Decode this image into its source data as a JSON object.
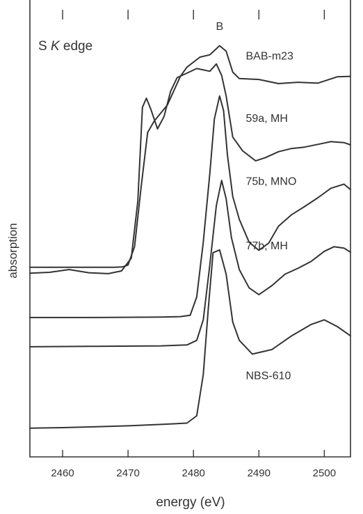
{
  "chart_data": {
    "type": "line",
    "title": "S K edge",
    "title_parts": [
      "S ",
      "K",
      " edge"
    ],
    "peak_label": "B",
    "peak_label_x": 2484,
    "xlabel": "energy (eV)",
    "ylabel": "absorption",
    "xlim": [
      2455,
      2504
    ],
    "xticks": [
      2460,
      2470,
      2480,
      2490,
      2500
    ],
    "y_ticks_shown": false,
    "grid": false,
    "legend": "none (series labelled inline at right)",
    "line_color": "#333333",
    "series": [
      {
        "name": "BAB-m23",
        "label_at": [
          2488,
          0.87
        ],
        "x": [
          2455,
          2468,
          2469.2,
          2470,
          2471,
          2472,
          2473,
          2474,
          2476,
          2478,
          2479,
          2481,
          2482.5,
          2484,
          2485,
          2486,
          2487,
          2490,
          2493,
          2496,
          2499,
          2502,
          2504
        ],
        "y": [
          0.415,
          0.415,
          0.416,
          0.42,
          0.46,
          0.59,
          0.71,
          0.735,
          0.77,
          0.833,
          0.853,
          0.875,
          0.88,
          0.9,
          0.888,
          0.842,
          0.828,
          0.826,
          0.817,
          0.82,
          0.818,
          0.832,
          0.833
        ]
      },
      {
        "name": "59a, MH",
        "label_at": [
          2488,
          0.733
        ],
        "x": [
          2455,
          2458,
          2461,
          2464,
          2467,
          2469,
          2470.5,
          2471.5,
          2472.2,
          2472.8,
          2473.5,
          2474.5,
          2475.5,
          2476.5,
          2477.5,
          2479,
          2480.5,
          2482.5,
          2483.5,
          2484.3,
          2485,
          2486,
          2487.5,
          2489.5,
          2491,
          2493,
          2495,
          2497,
          2499,
          2501,
          2503,
          2504
        ],
        "y": [
          0.402,
          0.404,
          0.41,
          0.403,
          0.401,
          0.407,
          0.435,
          0.56,
          0.765,
          0.785,
          0.76,
          0.718,
          0.745,
          0.8,
          0.83,
          0.84,
          0.85,
          0.844,
          0.86,
          0.835,
          0.79,
          0.7,
          0.67,
          0.648,
          0.655,
          0.668,
          0.675,
          0.678,
          0.684,
          0.69,
          0.688,
          0.683
        ]
      },
      {
        "name": "75b, MNO",
        "label_at": [
          2488,
          0.595
        ],
        "x": [
          2455,
          2465,
          2475,
          2478,
          2479.5,
          2480.5,
          2481.5,
          2482.5,
          2483.2,
          2484,
          2484.6,
          2485.2,
          2486,
          2487,
          2488.5,
          2490,
          2491.5,
          2493,
          2495,
          2497,
          2499,
          2501,
          2503,
          2504
        ],
        "y": [
          0.305,
          0.305,
          0.306,
          0.307,
          0.31,
          0.35,
          0.47,
          0.62,
          0.74,
          0.79,
          0.758,
          0.66,
          0.57,
          0.52,
          0.47,
          0.452,
          0.468,
          0.505,
          0.53,
          0.548,
          0.567,
          0.588,
          0.597,
          0.585
        ]
      },
      {
        "name": "77b, MH",
        "label_at": [
          2488,
          0.454
        ],
        "x": [
          2455,
          2465,
          2475,
          2479,
          2480.5,
          2481.5,
          2482.5,
          2483.5,
          2484.3,
          2485,
          2485.8,
          2487,
          2488.5,
          2490,
          2492,
          2494,
          2496,
          2498,
          2500,
          2501.5,
          2503,
          2504
        ],
        "y": [
          0.241,
          0.242,
          0.243,
          0.245,
          0.255,
          0.3,
          0.42,
          0.55,
          0.605,
          0.565,
          0.48,
          0.41,
          0.37,
          0.355,
          0.375,
          0.4,
          0.413,
          0.428,
          0.45,
          0.46,
          0.457,
          0.448
        ]
      },
      {
        "name": "NBS-610",
        "label_at": [
          2488,
          0.17
        ],
        "x": [
          2455,
          2460,
          2465,
          2470,
          2475,
          2479,
          2480.5,
          2481.5,
          2482.3,
          2483,
          2484,
          2485,
          2486,
          2487,
          2489,
          2492,
          2495,
          2498,
          2500,
          2502,
          2504
        ],
        "y": [
          0.063,
          0.064,
          0.066,
          0.068,
          0.071,
          0.074,
          0.09,
          0.18,
          0.33,
          0.447,
          0.453,
          0.4,
          0.295,
          0.255,
          0.225,
          0.235,
          0.265,
          0.29,
          0.3,
          0.285,
          0.265
        ]
      }
    ]
  }
}
